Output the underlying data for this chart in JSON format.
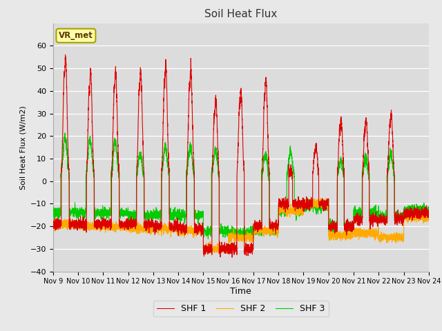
{
  "title": "Soil Heat Flux",
  "ylabel": "Soil Heat Flux (W/m2)",
  "xlabel": "Time",
  "ylim": [
    -40,
    70
  ],
  "yticks": [
    -40,
    -30,
    -20,
    -10,
    0,
    10,
    20,
    30,
    40,
    50,
    60
  ],
  "fig_bg": "#e8e8e8",
  "plot_bg": "#dcdcdc",
  "grid_color": "#ffffff",
  "line_colors": {
    "shf1": "#dd0000",
    "shf2": "#ffaa00",
    "shf3": "#00cc00"
  },
  "legend_labels": [
    "SHF 1",
    "SHF 2",
    "SHF 3"
  ],
  "annotation_text": "VR_met",
  "annotation_bg": "#ffffaa",
  "annotation_border": "#aaa000",
  "n_days": 15,
  "start_day": 9,
  "ppd": 288
}
